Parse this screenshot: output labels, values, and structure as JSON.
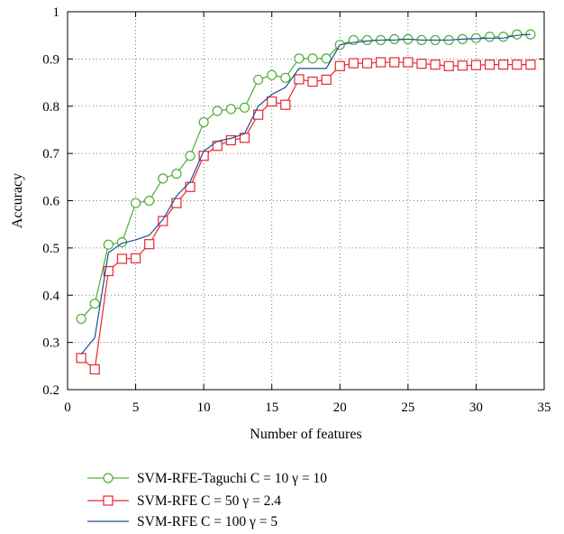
{
  "chart_data": {
    "type": "line",
    "title": "",
    "xlabel": "Number of features",
    "ylabel": "Accuracy",
    "xlim": [
      0,
      35
    ],
    "ylim": [
      0.2,
      1
    ],
    "xticks": [
      0,
      5,
      10,
      15,
      20,
      25,
      30,
      35
    ],
    "yticks": [
      0.2,
      0.3,
      0.4,
      0.5,
      0.6,
      0.7,
      0.8,
      0.9,
      1
    ],
    "ytick_labels": [
      "0.2",
      "0.3",
      "0.4",
      "0.5",
      "0.6",
      "0.7",
      "0.8",
      "0.9",
      "1"
    ],
    "grid": true,
    "legend_position": "bottom",
    "x": [
      1,
      2,
      3,
      4,
      5,
      6,
      7,
      8,
      9,
      10,
      11,
      12,
      13,
      14,
      15,
      16,
      17,
      18,
      19,
      20,
      21,
      22,
      23,
      24,
      25,
      26,
      27,
      28,
      29,
      30,
      31,
      32,
      33,
      34
    ],
    "series": [
      {
        "name": "SVM-RFE-Taguchi",
        "legend_params": "C = 10 γ = 10",
        "color": "#4daf36",
        "marker": "circle",
        "values": [
          0.35,
          0.382,
          0.507,
          0.512,
          0.595,
          0.6,
          0.647,
          0.657,
          0.695,
          0.766,
          0.79,
          0.794,
          0.797,
          0.856,
          0.866,
          0.86,
          0.901,
          0.901,
          0.901,
          0.93,
          0.94,
          0.94,
          0.94,
          0.942,
          0.942,
          0.94,
          0.94,
          0.94,
          0.942,
          0.944,
          0.947,
          0.947,
          0.952,
          0.952
        ]
      },
      {
        "name": "SVM-RFE",
        "legend_params": "C = 50 γ = 2.4",
        "color": "#e8262d",
        "marker": "square",
        "values": [
          0.267,
          0.243,
          0.451,
          0.477,
          0.478,
          0.508,
          0.557,
          0.595,
          0.629,
          0.695,
          0.716,
          0.728,
          0.733,
          0.782,
          0.81,
          0.803,
          0.857,
          0.852,
          0.856,
          0.885,
          0.891,
          0.891,
          0.893,
          0.893,
          0.893,
          0.89,
          0.888,
          0.885,
          0.886,
          0.887,
          0.888,
          0.888,
          0.888,
          0.888
        ]
      },
      {
        "name": "SVM-RFE",
        "legend_params": "C = 100 γ = 5",
        "color": "#1f4e98",
        "marker": "none",
        "values": [
          0.275,
          0.31,
          0.49,
          0.51,
          0.517,
          0.527,
          0.56,
          0.61,
          0.64,
          0.705,
          0.726,
          0.732,
          0.742,
          0.8,
          0.825,
          0.84,
          0.88,
          0.88,
          0.88,
          0.93,
          0.935,
          0.938,
          0.94,
          0.94,
          0.942,
          0.94,
          0.94,
          0.94,
          0.942,
          0.943,
          0.944,
          0.944,
          0.95,
          0.952
        ]
      }
    ]
  }
}
